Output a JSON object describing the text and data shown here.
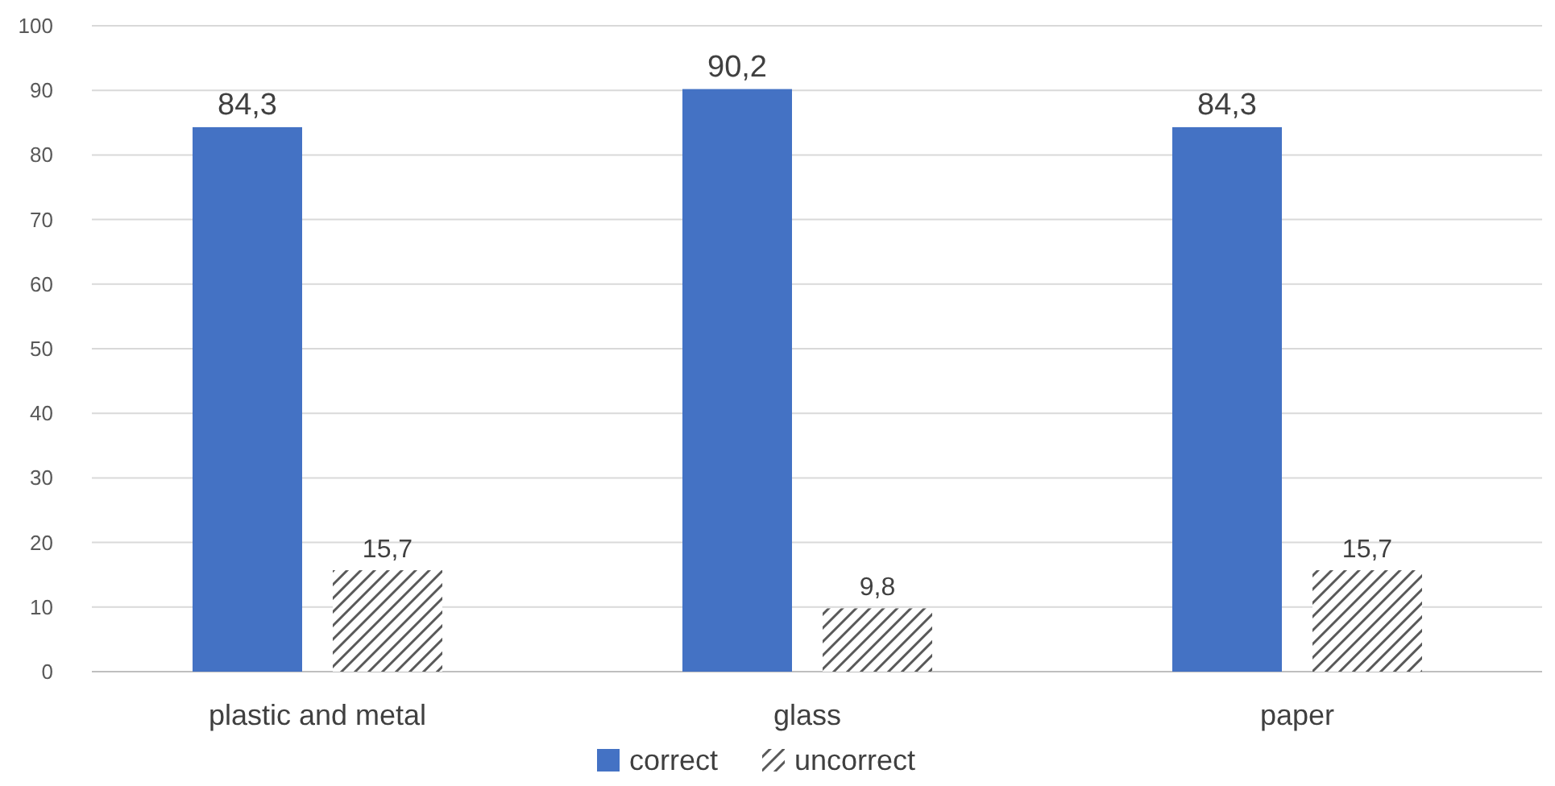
{
  "chart_data": {
    "type": "bar",
    "categories": [
      "plastic and metal",
      "glass",
      "paper"
    ],
    "series": [
      {
        "name": "correct",
        "color": "#4472c4",
        "values": [
          84.3,
          90.2,
          84.3
        ],
        "value_labels": [
          "84,3",
          "90,2",
          "84,3"
        ]
      },
      {
        "name": "uncorrect",
        "color": "#595959",
        "values": [
          15.7,
          9.8,
          15.7
        ],
        "value_labels": [
          "15,7",
          "9,8",
          "15,7"
        ]
      }
    ],
    "ylim": [
      0,
      100
    ],
    "yticks": [
      0,
      10,
      20,
      30,
      40,
      50,
      60,
      70,
      80,
      90,
      100
    ],
    "grid": "y",
    "legend": "bottom"
  }
}
